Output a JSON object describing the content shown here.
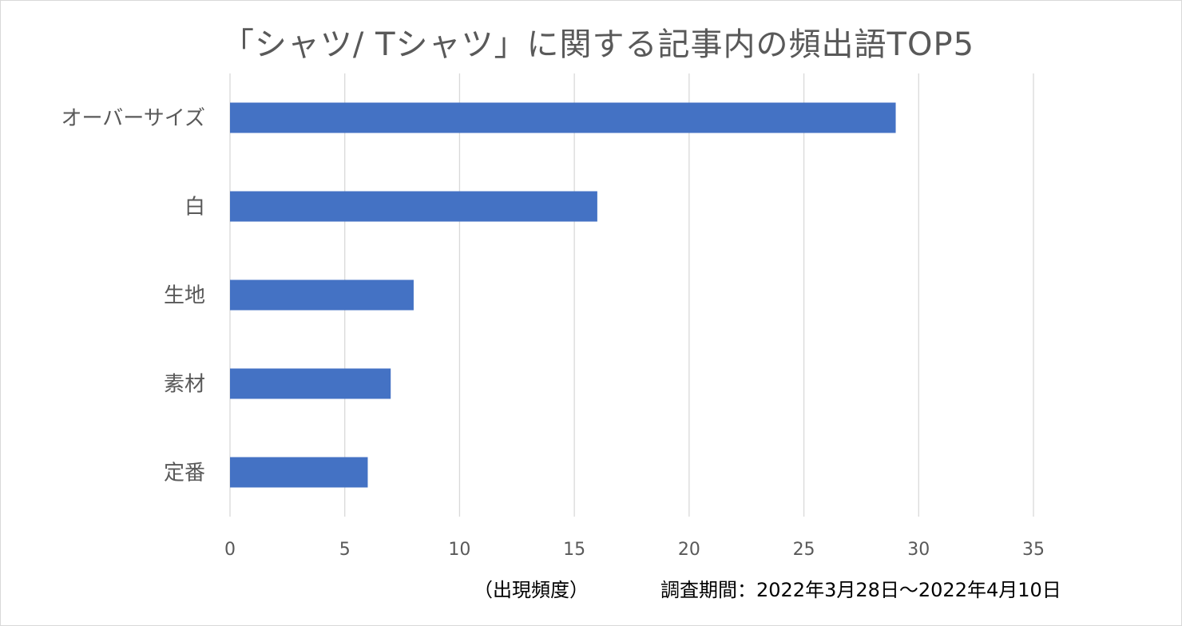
{
  "chart_data": {
    "type": "bar",
    "orientation": "horizontal",
    "title": "「シャツ/ Tシャツ」に関する記事内の頻出語TOP5",
    "categories": [
      "オーバーサイズ",
      "白",
      "生地",
      "素材",
      "定番"
    ],
    "values": [
      29,
      16,
      8,
      7,
      6
    ],
    "xlim": [
      0,
      35
    ],
    "xticks": [
      0,
      5,
      10,
      15,
      20,
      25,
      30,
      35
    ],
    "xlabel": "（出現頻度）",
    "grid": "vertical",
    "legend": "none",
    "bar_color": "#4472C4",
    "grid_color": "#D9D9D9"
  },
  "note": "調査期間：2022年3月28日～2022年4月10日"
}
